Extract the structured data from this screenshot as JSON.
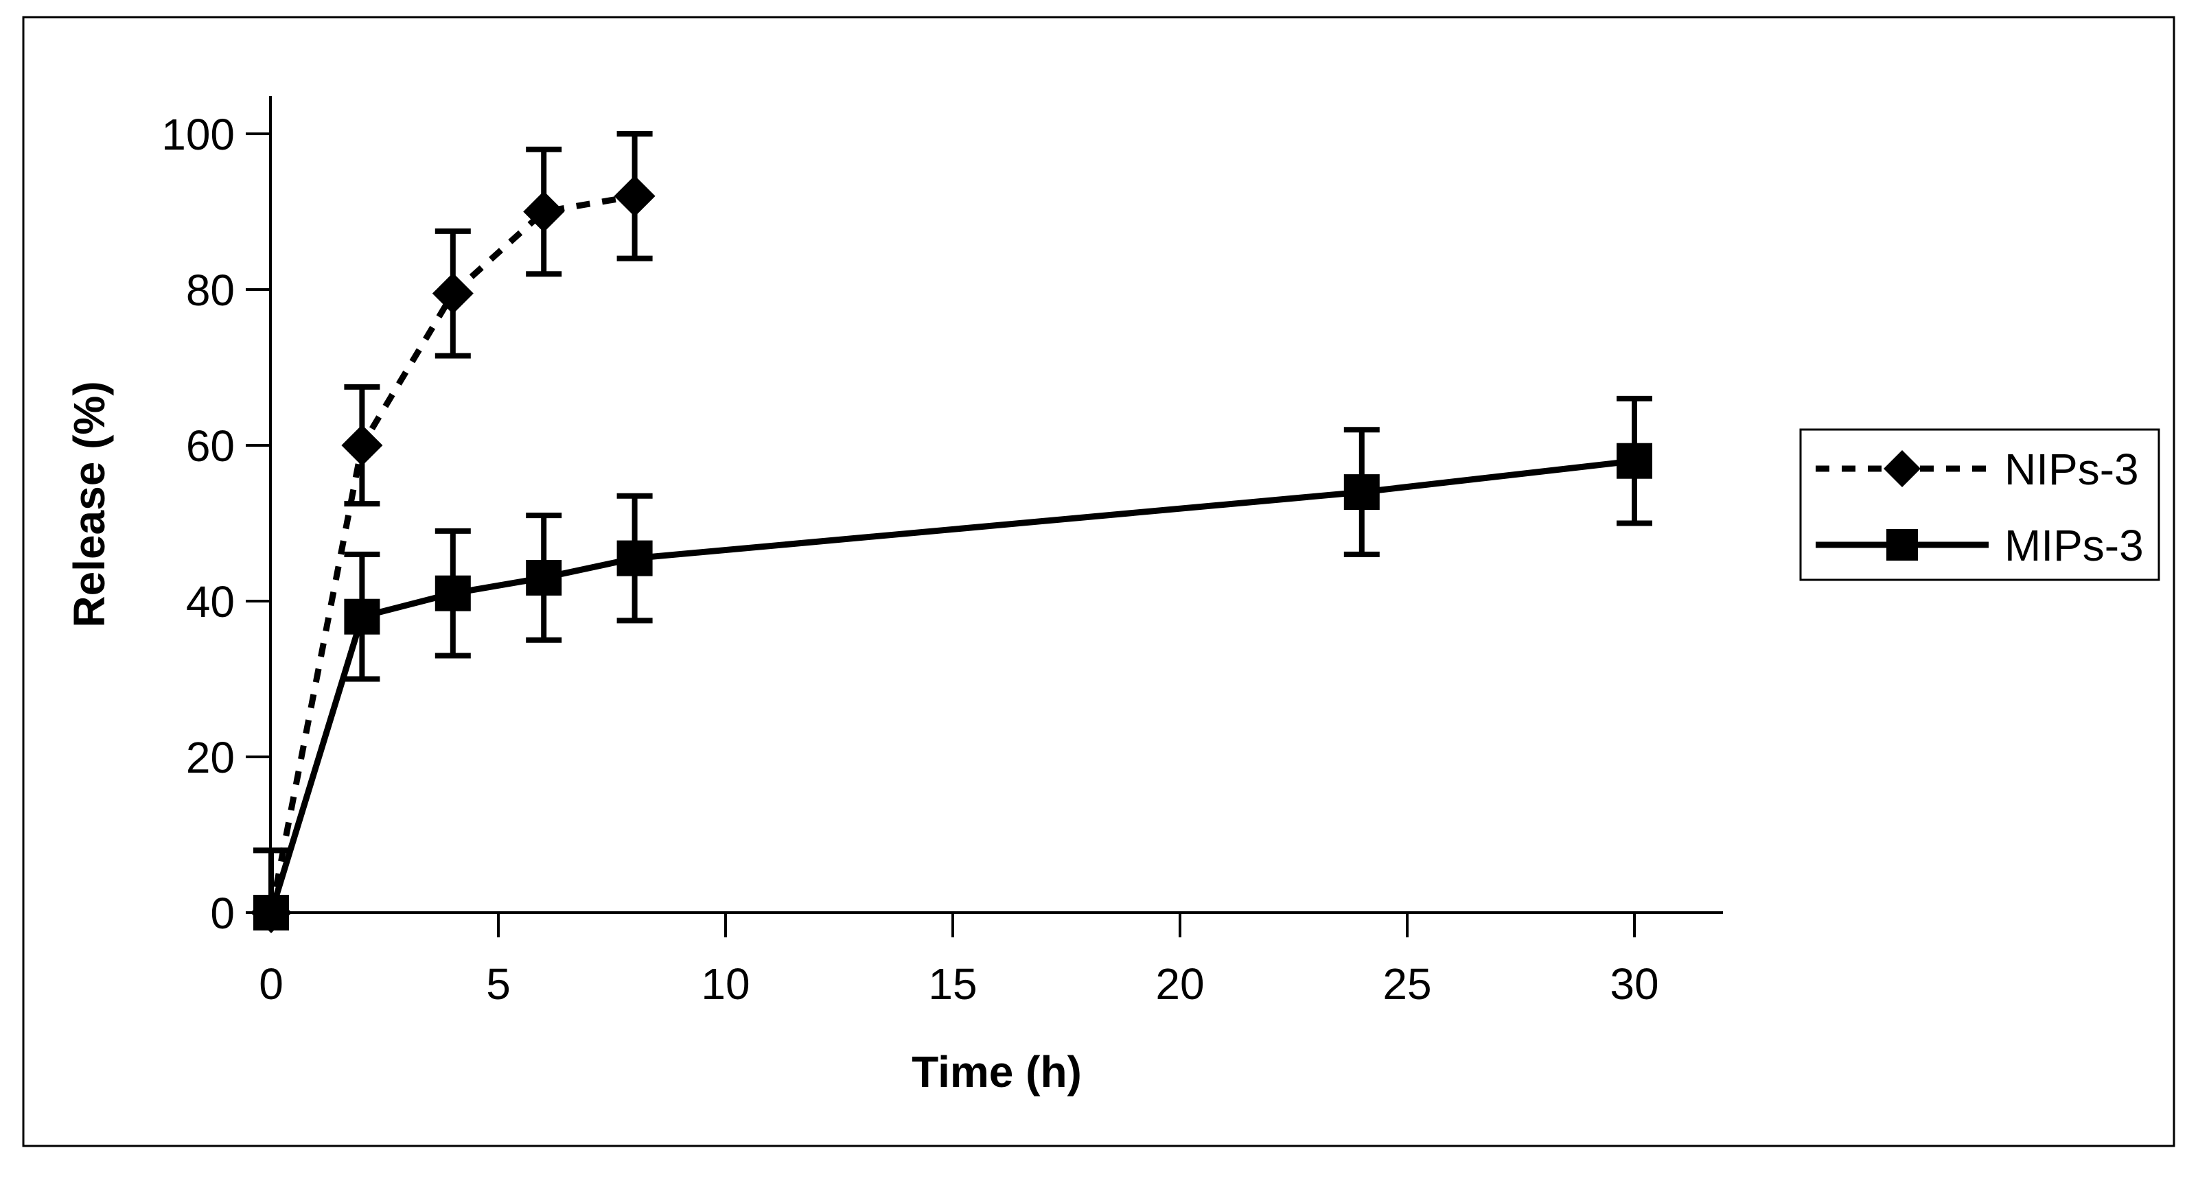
{
  "figure": {
    "background": "#ffffff",
    "ink_color": "#000000"
  },
  "chart_data": {
    "type": "line",
    "title": "",
    "xlabel": "Time (h)",
    "ylabel": "Release (%)",
    "x_ticks": [
      0,
      5,
      10,
      15,
      20,
      25,
      30
    ],
    "y_ticks": [
      0,
      20,
      40,
      60,
      80,
      100
    ],
    "xlim": [
      0,
      32
    ],
    "ylim": [
      0,
      105
    ],
    "grid": false,
    "legend_position": "right-outside",
    "error_bars": true,
    "series": [
      {
        "name": "NIPs-3",
        "line_style": "dashed",
        "marker": "diamond",
        "color": "#000000",
        "points": [
          {
            "x": 0,
            "y": 0,
            "err_up": 8,
            "err_down": 0
          },
          {
            "x": 2,
            "y": 60,
            "err_up": 7.5,
            "err_down": 7.5
          },
          {
            "x": 4,
            "y": 79.5,
            "err_up": 8,
            "err_down": 8
          },
          {
            "x": 6,
            "y": 90,
            "err_up": 8,
            "err_down": 8
          },
          {
            "x": 8,
            "y": 92,
            "err_up": 8,
            "err_down": 8
          }
        ]
      },
      {
        "name": "MIPs-3",
        "line_style": "solid",
        "marker": "square",
        "color": "#000000",
        "points": [
          {
            "x": 0,
            "y": 0,
            "err_up": 8,
            "err_down": 0
          },
          {
            "x": 2,
            "y": 38,
            "err_up": 8,
            "err_down": 8
          },
          {
            "x": 4,
            "y": 41,
            "err_up": 8,
            "err_down": 8
          },
          {
            "x": 6,
            "y": 43,
            "err_up": 8,
            "err_down": 8
          },
          {
            "x": 8,
            "y": 45.5,
            "err_up": 8,
            "err_down": 8
          },
          {
            "x": 24,
            "y": 54,
            "err_up": 8,
            "err_down": 8
          },
          {
            "x": 30,
            "y": 58,
            "err_up": 8,
            "err_down": 8
          }
        ]
      }
    ],
    "legend": [
      "NIPs-3",
      "MIPs-3"
    ]
  }
}
